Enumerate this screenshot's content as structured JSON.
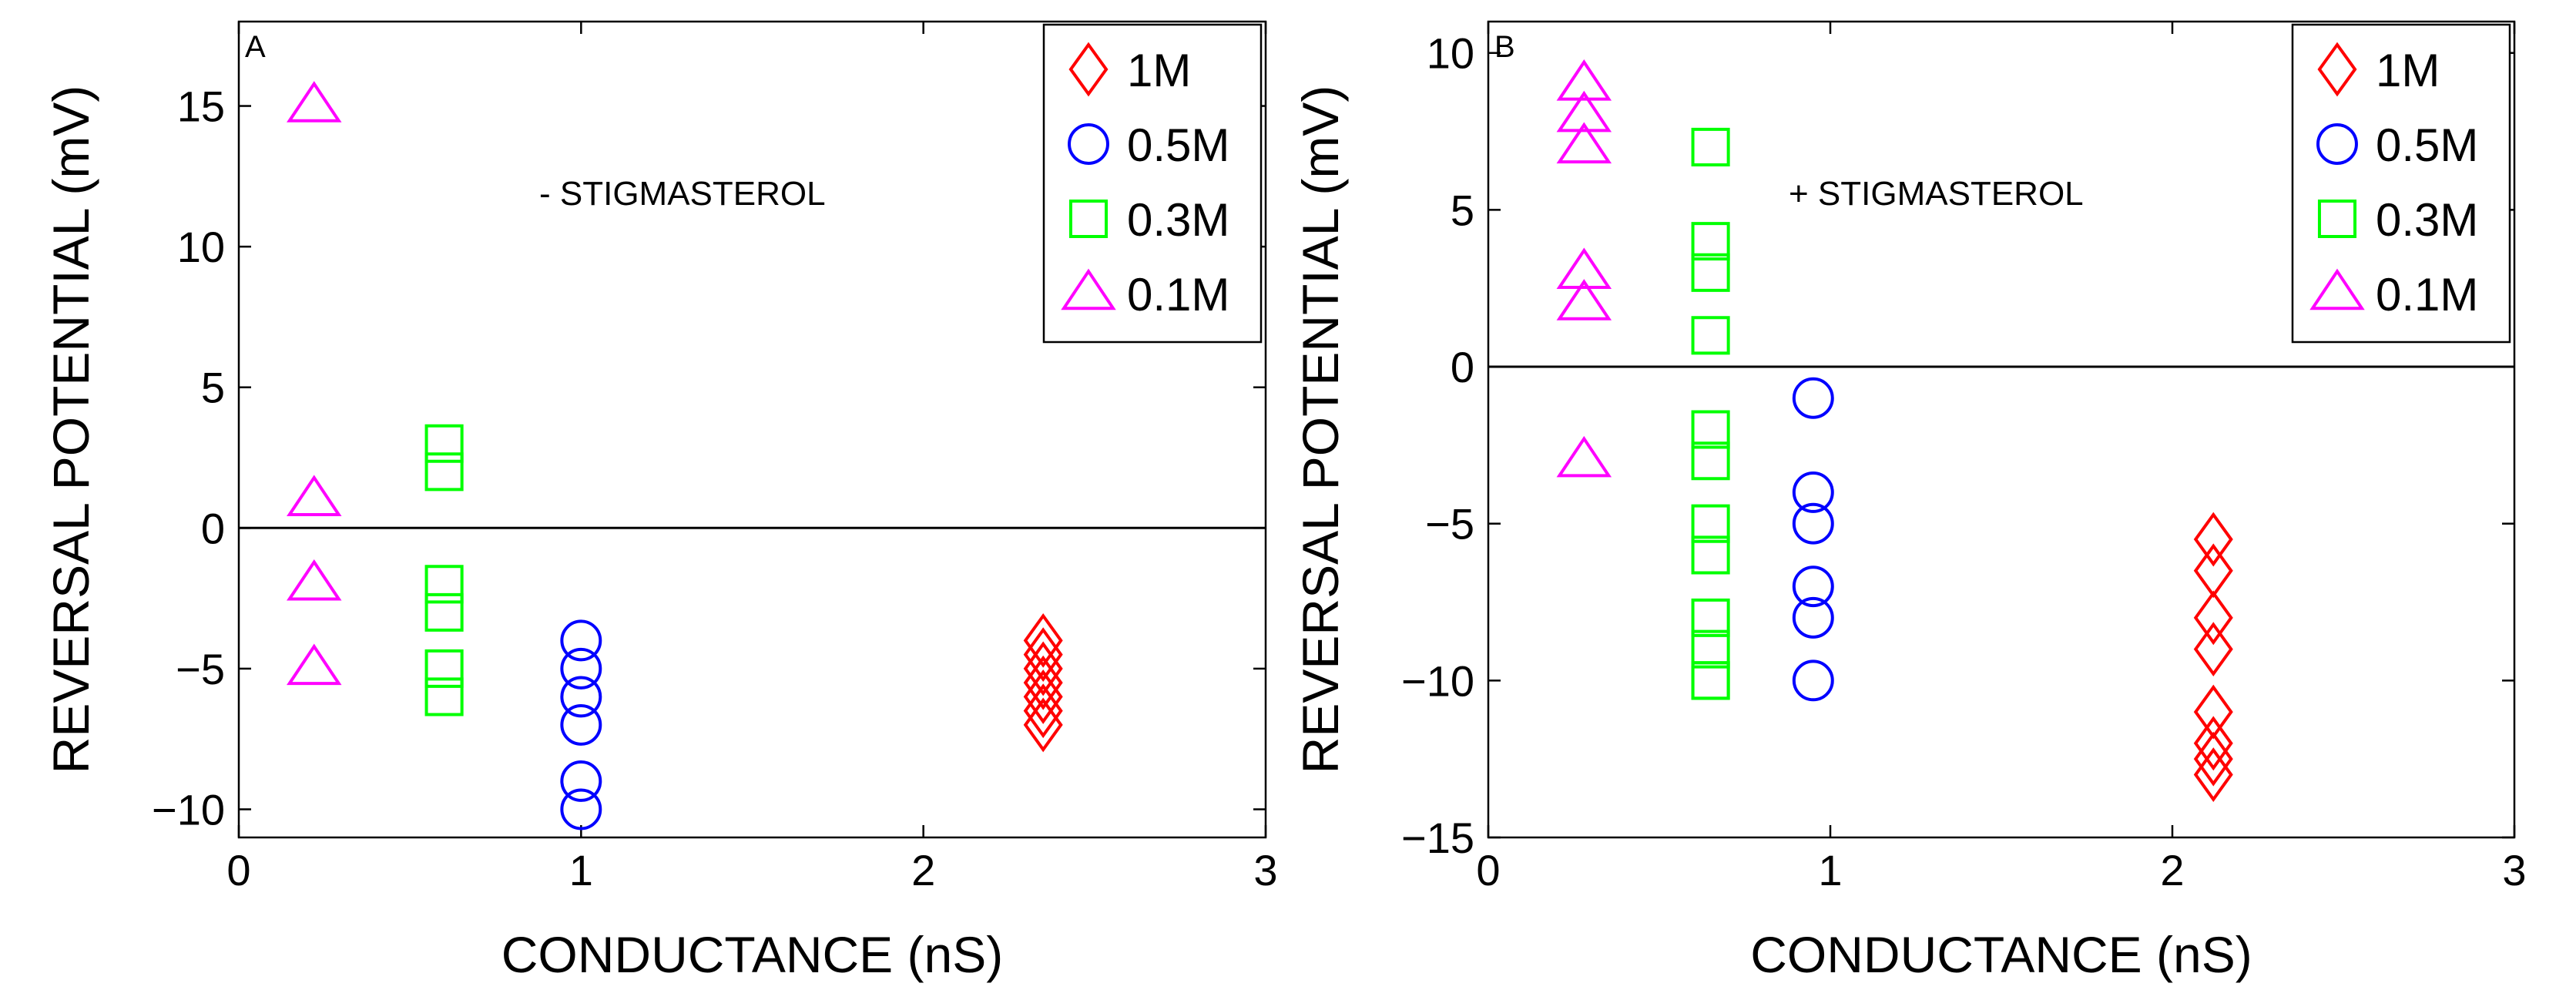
{
  "chart_data": [
    {
      "type": "scatter",
      "panel_label": "A",
      "annotation": "- STIGMASTEROL",
      "xlabel": "CONDUCTANCE (nS)",
      "ylabel": "REVERSAL POTENTIAL (mV)",
      "xlim": [
        0,
        3
      ],
      "ylim": [
        -11,
        18
      ],
      "xticks": [
        0,
        1,
        2,
        3
      ],
      "yticks": [
        -10,
        -5,
        0,
        5,
        10,
        15
      ],
      "xtick_labels": [
        "0",
        "1",
        "2",
        "3"
      ],
      "ytick_labels": [
        "−10",
        "−5",
        "0",
        "5",
        "10",
        "15"
      ],
      "zero_line": true,
      "grid": false,
      "legend_position": "top-right",
      "series": [
        {
          "name": "1M",
          "marker": "diamond",
          "color": "#ff0000",
          "x": [
            2.35,
            2.35,
            2.35,
            2.35,
            2.35,
            2.35,
            2.35
          ],
          "y": [
            -4,
            -4.5,
            -5,
            -5.5,
            -6,
            -6.5,
            -7
          ]
        },
        {
          "name": "0.5M",
          "marker": "circle",
          "color": "#0000ff",
          "x": [
            1,
            1,
            1,
            1,
            1,
            1
          ],
          "y": [
            -4,
            -5,
            -6,
            -7,
            -9,
            -10
          ]
        },
        {
          "name": "0.3M",
          "marker": "square",
          "color": "#00ff00",
          "x": [
            0.6,
            0.6,
            0.6,
            0.6,
            0.6,
            0.6
          ],
          "y": [
            3,
            2,
            -2,
            -3,
            -5,
            -6
          ]
        },
        {
          "name": "0.1M",
          "marker": "triangle",
          "color": "#ff00ff",
          "x": [
            0.22,
            0.22,
            0.22,
            0.22
          ],
          "y": [
            15,
            1,
            -2,
            -5
          ]
        }
      ]
    },
    {
      "type": "scatter",
      "panel_label": "B",
      "annotation": "+ STIGMASTEROL",
      "xlabel": "CONDUCTANCE (nS)",
      "ylabel": "REVERSAL POTENTIAL (mV)",
      "xlim": [
        0,
        3
      ],
      "ylim": [
        -15,
        11
      ],
      "xticks": [
        0,
        1,
        2,
        3
      ],
      "yticks": [
        -15,
        -10,
        -5,
        0,
        5,
        10
      ],
      "xtick_labels": [
        "0",
        "1",
        "2",
        "3"
      ],
      "ytick_labels": [
        "−15",
        "−10",
        "−5",
        "0",
        "5",
        "10"
      ],
      "zero_line": true,
      "grid": false,
      "legend_position": "top-right",
      "series": [
        {
          "name": "1M",
          "marker": "diamond",
          "color": "#ff0000",
          "x": [
            2.12,
            2.12,
            2.12,
            2.12,
            2.12,
            2.12,
            2.12,
            2.12
          ],
          "y": [
            -5.5,
            -6.5,
            -8,
            -9,
            -11,
            -12,
            -12.5,
            -13
          ]
        },
        {
          "name": "0.5M",
          "marker": "circle",
          "color": "#0000ff",
          "x": [
            0.95,
            0.95,
            0.95,
            0.95,
            0.95,
            0.95
          ],
          "y": [
            -1,
            -4,
            -5,
            -7,
            -8,
            -10
          ]
        },
        {
          "name": "0.3M",
          "marker": "square",
          "color": "#00ff00",
          "x": [
            0.65,
            0.65,
            0.65,
            0.65,
            0.65,
            0.65,
            0.65,
            0.65,
            0.65,
            0.65,
            0.65,
            0.65
          ],
          "y": [
            7,
            4,
            3,
            1,
            -2,
            -3,
            -5,
            -6,
            -8,
            -9,
            -10,
            -10
          ]
        },
        {
          "name": "0.1M",
          "marker": "triangle",
          "color": "#ff00ff",
          "x": [
            0.28,
            0.28,
            0.28,
            0.28,
            0.28,
            0.28
          ],
          "y": [
            9,
            8,
            7,
            3,
            2,
            -3
          ]
        }
      ]
    }
  ]
}
